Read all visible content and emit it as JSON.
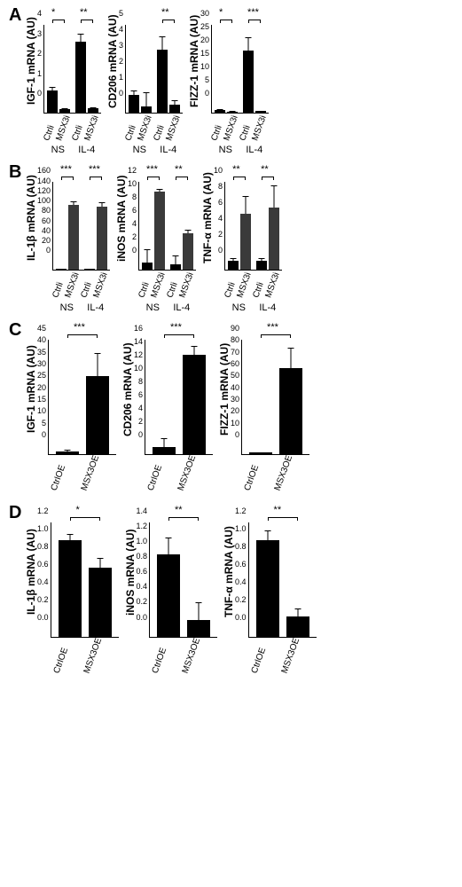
{
  "figure": {
    "panels": {
      "A": {
        "conditions": [
          "Ctrli",
          "MSX3i"
        ],
        "groups": [
          "NS",
          "IL-4"
        ],
        "charts": [
          {
            "ylabel": "IGF-1 mRNA (AU)",
            "ylim": [
              0,
              4
            ],
            "yticks": [
              0,
              1,
              2,
              3,
              4
            ],
            "values": [
              [
                1.0,
                0.15
              ],
              [
                3.2,
                0.2
              ]
            ],
            "errors": [
              [
                0.15,
                0.05
              ],
              [
                0.35,
                0.05
              ]
            ],
            "bar_colors": [
              "#000000",
              "#000000",
              "#000000",
              "#000000"
            ],
            "sig": [
              {
                "over": [
                  0,
                  1
                ],
                "label": "*"
              },
              {
                "over": [
                  2,
                  3
                ],
                "label": "**"
              }
            ]
          },
          {
            "ylabel": "CD206 mRNA (AU)",
            "ylim": [
              0,
              5
            ],
            "yticks": [
              0,
              1,
              2,
              3,
              4,
              5
            ],
            "values": [
              [
                1.0,
                0.35
              ],
              [
                3.55,
                0.45
              ]
            ],
            "errors": [
              [
                0.25,
                0.8
              ],
              [
                0.75,
                0.25
              ]
            ],
            "bar_colors": [
              "#000000",
              "#000000",
              "#000000",
              "#000000"
            ],
            "sig": [
              {
                "over": [
                  2,
                  3
                ],
                "label": "**"
              }
            ]
          },
          {
            "ylabel": "FIZZ-1 mRNA (AU)",
            "ylim": [
              0,
              30
            ],
            "yticks": [
              0,
              5,
              10,
              15,
              20,
              25,
              30
            ],
            "values": [
              [
                1.0,
                0.3
              ],
              [
                21,
                0.5
              ]
            ],
            "errors": [
              [
                0.3,
                0.2
              ],
              [
                4.5,
                0.2
              ]
            ],
            "bar_colors": [
              "#000000",
              "#000000",
              "#000000",
              "#000000"
            ],
            "sig": [
              {
                "over": [
                  0,
                  1
                ],
                "label": "*"
              },
              {
                "over": [
                  2,
                  3
                ],
                "label": "***"
              }
            ]
          }
        ]
      },
      "B": {
        "conditions": [
          "Ctrli",
          "MSX3i"
        ],
        "groups": [
          "NS",
          "IL-4"
        ],
        "charts": [
          {
            "ylabel": "IL-1β mRNA (AU)",
            "ylim": [
              0,
              160
            ],
            "yticks": [
              0,
              20,
              40,
              60,
              80,
              100,
              120,
              140,
              160
            ],
            "values": [
              [
                2,
                118
              ],
              [
                2,
                115
              ]
            ],
            "errors": [
              [
                1,
                6
              ],
              [
                1,
                8
              ]
            ],
            "bar_colors": [
              "#000000",
              "#3a3a3a",
              "#000000",
              "#3a3a3a"
            ],
            "sig": [
              {
                "over": [
                  0,
                  1
                ],
                "label": "***"
              },
              {
                "over": [
                  2,
                  3
                ],
                "label": "***"
              }
            ]
          },
          {
            "ylabel": "iNOS mRNA (AU)",
            "ylim": [
              0,
              12
            ],
            "yticks": [
              0,
              2,
              4,
              6,
              8,
              10,
              12
            ],
            "values": [
              [
                1,
                10.6
              ],
              [
                0.8,
                5.0
              ]
            ],
            "errors": [
              [
                1.8,
                0.35
              ],
              [
                1.2,
                0.45
              ]
            ],
            "bar_colors": [
              "#000000",
              "#3a3a3a",
              "#000000",
              "#3a3a3a"
            ],
            "sig": [
              {
                "over": [
                  0,
                  1
                ],
                "label": "***"
              },
              {
                "over": [
                  2,
                  3
                ],
                "label": "**"
              }
            ]
          },
          {
            "ylabel": "TNF-α mRNA (AU)",
            "ylim": [
              0,
              10
            ],
            "yticks": [
              0,
              2,
              4,
              6,
              8,
              10
            ],
            "values": [
              [
                1.0,
                6.3
              ],
              [
                1.0,
                7.0
              ]
            ],
            "errors": [
              [
                0.3,
                2.0
              ],
              [
                0.3,
                2.5
              ]
            ],
            "bar_colors": [
              "#000000",
              "#3a3a3a",
              "#000000",
              "#3a3a3a"
            ],
            "sig": [
              {
                "over": [
                  0,
                  1
                ],
                "label": "**"
              },
              {
                "over": [
                  2,
                  3
                ],
                "label": "**"
              }
            ]
          }
        ]
      },
      "C": {
        "conditions": [
          "CtrlOE",
          "MSX3OE"
        ],
        "charts": [
          {
            "ylabel": "IGF-1 mRNA (AU)",
            "ylim": [
              0,
              45
            ],
            "yticks": [
              0,
              5,
              10,
              15,
              20,
              25,
              30,
              35,
              40,
              45
            ],
            "values": [
              1.0,
              30.5
            ],
            "errors": [
              0.7,
              9
            ],
            "bar_colors": [
              "#000000",
              "#000000"
            ],
            "sig_label": "***"
          },
          {
            "ylabel": "CD206 mRNA (AU)",
            "ylim": [
              0,
              16
            ],
            "yticks": [
              0,
              2,
              4,
              6,
              8,
              10,
              12,
              14,
              16
            ],
            "values": [
              1.0,
              13.8
            ],
            "errors": [
              1.2,
              1.2
            ],
            "bar_colors": [
              "#000000",
              "#000000"
            ],
            "sig_label": "***"
          },
          {
            "ylabel": "FIZZ-1 mRNA (AU)",
            "ylim": [
              0,
              90
            ],
            "yticks": [
              0,
              10,
              20,
              30,
              40,
              50,
              60,
              70,
              80,
              90
            ],
            "values": [
              1.0,
              67
            ],
            "errors": [
              0.5,
              16
            ],
            "bar_colors": [
              "#000000",
              "#000000"
            ],
            "sig_label": "***"
          }
        ]
      },
      "D": {
        "conditions": [
          "CtrlOE",
          "MSX3OE"
        ],
        "charts": [
          {
            "ylabel": "IL-1β mRNA (AU)",
            "ylim": [
              0,
              1.2
            ],
            "yticks": [
              "0.0",
              "0.2",
              "0.4",
              "0.6",
              "0.8",
              "1.0",
              "1.2"
            ],
            "values": [
              1.0,
              0.72
            ],
            "errors": [
              0.07,
              0.1
            ],
            "bar_colors": [
              "#000000",
              "#000000"
            ],
            "sig_label": "*"
          },
          {
            "ylabel": "iNOS mRNA (AU)",
            "ylim": [
              0,
              1.4
            ],
            "yticks": [
              "0.0",
              "0.2",
              "0.4",
              "0.6",
              "0.8",
              "1.0",
              "1.2",
              "1.4"
            ],
            "values": [
              1.0,
              0.2
            ],
            "errors": [
              0.2,
              0.22
            ],
            "bar_colors": [
              "#000000",
              "#000000"
            ],
            "sig_label": "**"
          },
          {
            "ylabel": "TNF-α mRNA (AU)",
            "ylim": [
              0,
              1.2
            ],
            "yticks": [
              "0.0",
              "0.2",
              "0.4",
              "0.6",
              "0.8",
              "1.0",
              "1.2"
            ],
            "values": [
              1.0,
              0.21
            ],
            "errors": [
              0.1,
              0.08
            ],
            "bar_colors": [
              "#000000",
              "#000000"
            ],
            "sig_label": "**"
          }
        ]
      }
    },
    "layout": {
      "plot_height_AB": 100,
      "plot_height_CD": 130,
      "bar_width_AB": 12,
      "bar_width_CD": 26,
      "background": "#ffffff"
    }
  }
}
